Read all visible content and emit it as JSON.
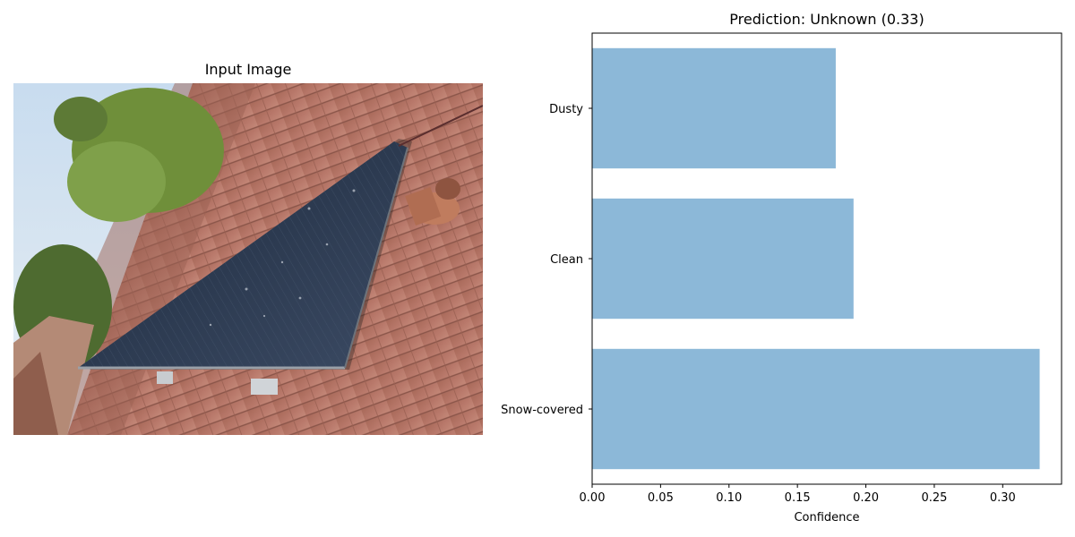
{
  "left_panel": {
    "title": "Input Image",
    "image_description_icon": "solar-panel-photo"
  },
  "chart_data": {
    "type": "bar",
    "orientation": "horizontal",
    "title": "Prediction: Unknown (0.33)",
    "categories": [
      "Snow-covered",
      "Clean",
      "Dusty"
    ],
    "values": [
      0.327,
      0.191,
      0.178
    ],
    "xlabel": "Confidence",
    "ylabel": "",
    "xlim": [
      0,
      0.343
    ],
    "xticks": [
      0.0,
      0.05,
      0.1,
      0.15,
      0.2,
      0.25,
      0.3
    ],
    "xtick_labels": [
      "0.00",
      "0.05",
      "0.10",
      "0.15",
      "0.20",
      "0.25",
      "0.30"
    ],
    "bar_color": "#8cb8d8",
    "grid": false
  }
}
